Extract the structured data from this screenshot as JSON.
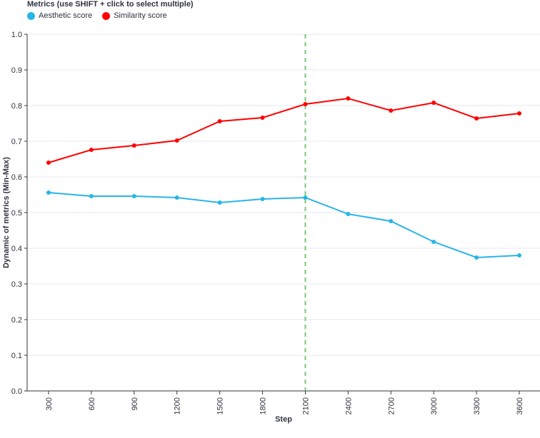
{
  "chart_data": {
    "type": "line",
    "legend_title": "Metrics (use SHIFT + click to select multiple)",
    "legend_placement": "top-left",
    "xlabel": "Step",
    "ylabel": "Dynamic of metrics (Min-Max)",
    "ylim": [
      0,
      1.0
    ],
    "yticks": [
      "0.0",
      "0.1",
      "0.2",
      "0.3",
      "0.4",
      "0.5",
      "0.6",
      "0.7",
      "0.8",
      "0.9",
      "1.0"
    ],
    "x": [
      "300",
      "600",
      "900",
      "1200",
      "1500",
      "1800",
      "2100",
      "2400",
      "2700",
      "3000",
      "3300",
      "3600"
    ],
    "grid": true,
    "vline": {
      "x": "2100",
      "color": "#7bc67b",
      "style": "dashed"
    },
    "series": [
      {
        "name": "Aesthetic score",
        "color": "#29b5e8",
        "values": [
          0.556,
          0.546,
          0.546,
          0.542,
          0.528,
          0.538,
          0.542,
          0.496,
          0.476,
          0.418,
          0.374,
          0.38
        ]
      },
      {
        "name": "Similarity score",
        "color": "#ff0000",
        "values": [
          0.64,
          0.676,
          0.688,
          0.702,
          0.756,
          0.766,
          0.804,
          0.82,
          0.786,
          0.808,
          0.764,
          0.778
        ]
      }
    ]
  }
}
